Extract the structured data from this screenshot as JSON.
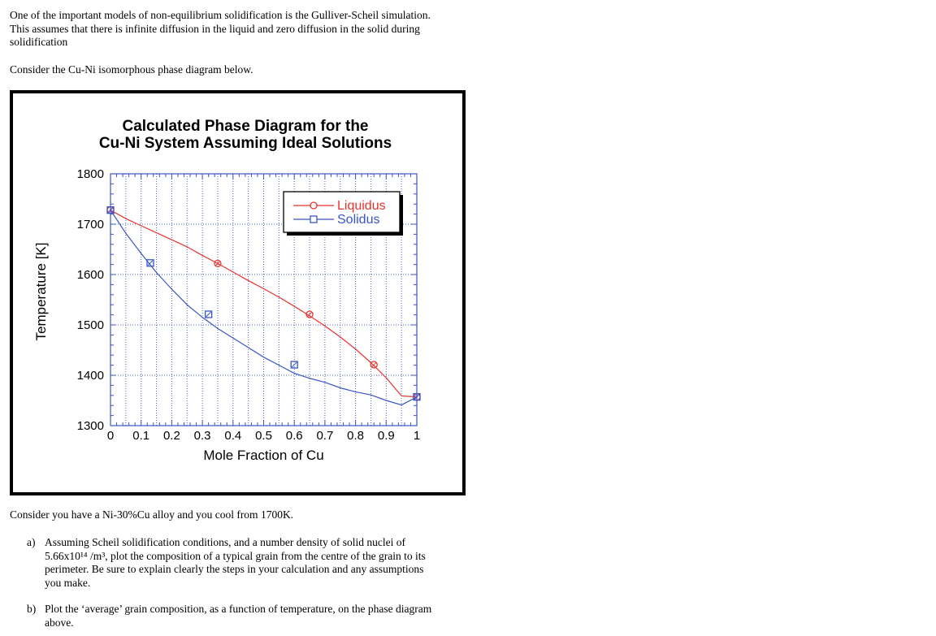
{
  "intro_lines": [
    "One of the important models of non-equilibrium solidification is the Gulliver-Scheil simulation.",
    "This assumes that there is infinite diffusion in the liquid and zero diffusion in the solid during",
    "solidification"
  ],
  "consider_diagram": "Consider the Cu-Ni isomorphous phase diagram below.",
  "consider_alloy": "Consider you have a Ni-30%Cu alloy and you cool from 1700K.",
  "question_a": {
    "label": "a)",
    "lines": [
      "Assuming Scheil solidification conditions, and a number density of solid nuclei of",
      "5.66x10¹⁴ /m³, plot the composition of a typical grain from the centre of the grain to its",
      "perimeter.  Be sure to explain clearly the steps in your calculation and any assumptions",
      "you make."
    ]
  },
  "question_b": {
    "label": "b)",
    "lines": [
      "Plot the ‘average’ grain composition, as a function of temperature, on the phase diagram",
      "above."
    ]
  },
  "chart_data": {
    "type": "line",
    "title": [
      "Calculated Phase Diagram for the",
      "Cu-Ni System Assuming Ideal Solutions"
    ],
    "xlabel": "Mole Fraction of Cu",
    "ylabel": "Temperature [K]",
    "xlim": [
      0,
      1
    ],
    "ylim": [
      1300,
      1800
    ],
    "xticks": [
      0,
      0.1,
      0.2,
      0.3,
      0.4,
      0.5,
      0.6,
      0.7,
      0.8,
      0.9,
      1
    ],
    "xtick_labels": [
      "0",
      "0.1",
      "0.2",
      "0.3",
      "0.4",
      "0.5",
      "0.6",
      "0.7",
      "0.8",
      "0.9",
      "1"
    ],
    "yticks": [
      1300,
      1400,
      1500,
      1600,
      1700,
      1800
    ],
    "ytick_labels": [
      "1300",
      "1400",
      "1500",
      "1600",
      "1700",
      "1800"
    ],
    "grid": true,
    "legend_position": "top-right",
    "series": [
      {
        "name": "Liquidus",
        "color": "#e8332f",
        "marker": "circle",
        "line_x": [
          0,
          0.05,
          0.1,
          0.15,
          0.2,
          0.25,
          0.3,
          0.35,
          0.4,
          0.45,
          0.5,
          0.55,
          0.6,
          0.65,
          0.7,
          0.75,
          0.8,
          0.85,
          0.9,
          0.95,
          1
        ],
        "line_y": [
          1728,
          1711,
          1697,
          1683,
          1669,
          1655,
          1638,
          1622,
          1605,
          1588,
          1572,
          1555,
          1537,
          1518,
          1498,
          1476,
          1452,
          1425,
          1395,
          1359,
          1357
        ],
        "marker_x": [
          0,
          0.35,
          0.65,
          0.86,
          1
        ],
        "marker_y": [
          1728,
          1622,
          1521,
          1421,
          1357
        ]
      },
      {
        "name": "Solidus",
        "color": "#3a55c8",
        "marker": "square",
        "line_x": [
          0,
          0.05,
          0.1,
          0.15,
          0.2,
          0.25,
          0.3,
          0.35,
          0.4,
          0.45,
          0.5,
          0.55,
          0.6,
          0.65,
          0.7,
          0.75,
          0.8,
          0.85,
          0.9,
          0.95,
          1
        ],
        "line_y": [
          1728,
          1682,
          1642,
          1604,
          1571,
          1540,
          1515,
          1493,
          1474,
          1455,
          1436,
          1420,
          1404,
          1394,
          1386,
          1375,
          1367,
          1361,
          1350,
          1341,
          1357
        ],
        "marker_x": [
          0,
          0.13,
          0.32,
          0.6,
          1
        ],
        "marker_y": [
          1728,
          1623,
          1521,
          1421,
          1357
        ]
      }
    ]
  }
}
